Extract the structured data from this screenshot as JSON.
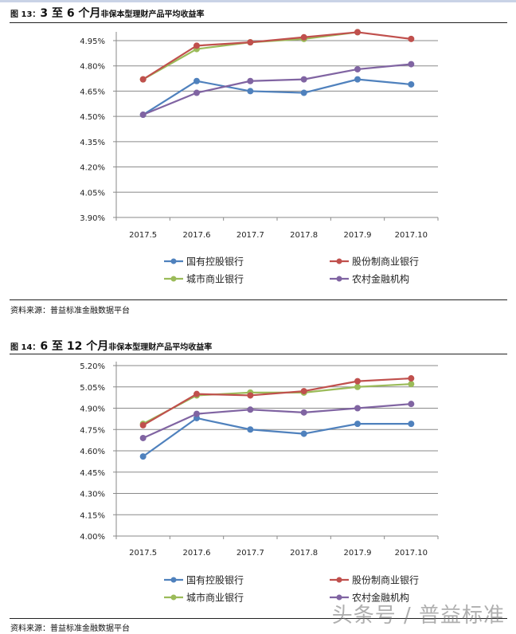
{
  "figures": [
    {
      "label": "图 13：",
      "range_big": "3 至 6 个月",
      "title_rest": "非保本型理财产品平均收益率",
      "source": "资料来源：普益标准金融数据平台"
    },
    {
      "label": "图 14：",
      "range_big": "6 至 12 个月",
      "title_rest": "非保本型理财产品平均收益率",
      "source": "资料来源：普益标准金融数据平台"
    }
  ],
  "watermark": "头条号 / 普益标准",
  "colors": {
    "国有控股银行": "#4f81bd",
    "股份制商业银行": "#c0504d",
    "城市商业银行": "#9bbb59",
    "农村金融机构": "#8064a2"
  },
  "chart_data": [
    {
      "type": "line",
      "title": "图 13：3 至 6 个月非保本型理财产品平均收益率",
      "xlabel": "",
      "ylabel": "",
      "categories": [
        "2017.5",
        "2017.6",
        "2017.7",
        "2017.8",
        "2017.9",
        "2017.10"
      ],
      "yticks": [
        "3.90%",
        "4.05%",
        "4.20%",
        "4.35%",
        "4.50%",
        "4.65%",
        "4.80%",
        "4.95%"
      ],
      "ylim": [
        3.9,
        5.02
      ],
      "grid": true,
      "legend_position": "bottom",
      "series": [
        {
          "name": "国有控股银行",
          "values": [
            4.51,
            4.71,
            4.65,
            4.64,
            4.72,
            4.69
          ]
        },
        {
          "name": "股份制商业银行",
          "values": [
            4.72,
            4.92,
            4.94,
            4.97,
            5.0,
            4.96
          ]
        },
        {
          "name": "城市商业银行",
          "values": [
            4.72,
            4.9,
            4.94,
            4.96,
            5.0,
            null
          ]
        },
        {
          "name": "农村金融机构",
          "values": [
            4.51,
            4.64,
            4.71,
            4.72,
            4.78,
            4.81
          ]
        }
      ]
    },
    {
      "type": "line",
      "title": "图 14：6 至 12 个月非保本型理财产品平均收益率",
      "xlabel": "",
      "ylabel": "",
      "categories": [
        "2017.5",
        "2017.6",
        "2017.7",
        "2017.8",
        "2017.9",
        "2017.10"
      ],
      "yticks": [
        "4.00%",
        "4.15%",
        "4.30%",
        "4.45%",
        "4.60%",
        "4.75%",
        "4.90%",
        "5.05%",
        "5.20%"
      ],
      "ylim": [
        4.0,
        5.2
      ],
      "grid": true,
      "legend_position": "bottom",
      "series": [
        {
          "name": "国有控股银行",
          "values": [
            4.56,
            4.83,
            4.75,
            4.72,
            4.79,
            4.79
          ]
        },
        {
          "name": "股份制商业银行",
          "values": [
            4.78,
            5.0,
            4.99,
            5.02,
            5.09,
            5.11
          ]
        },
        {
          "name": "城市商业银行",
          "values": [
            4.79,
            4.99,
            5.01,
            5.01,
            5.05,
            5.07
          ]
        },
        {
          "name": "农村金融机构",
          "values": [
            4.69,
            4.86,
            4.89,
            4.87,
            4.9,
            4.93
          ]
        }
      ]
    }
  ]
}
